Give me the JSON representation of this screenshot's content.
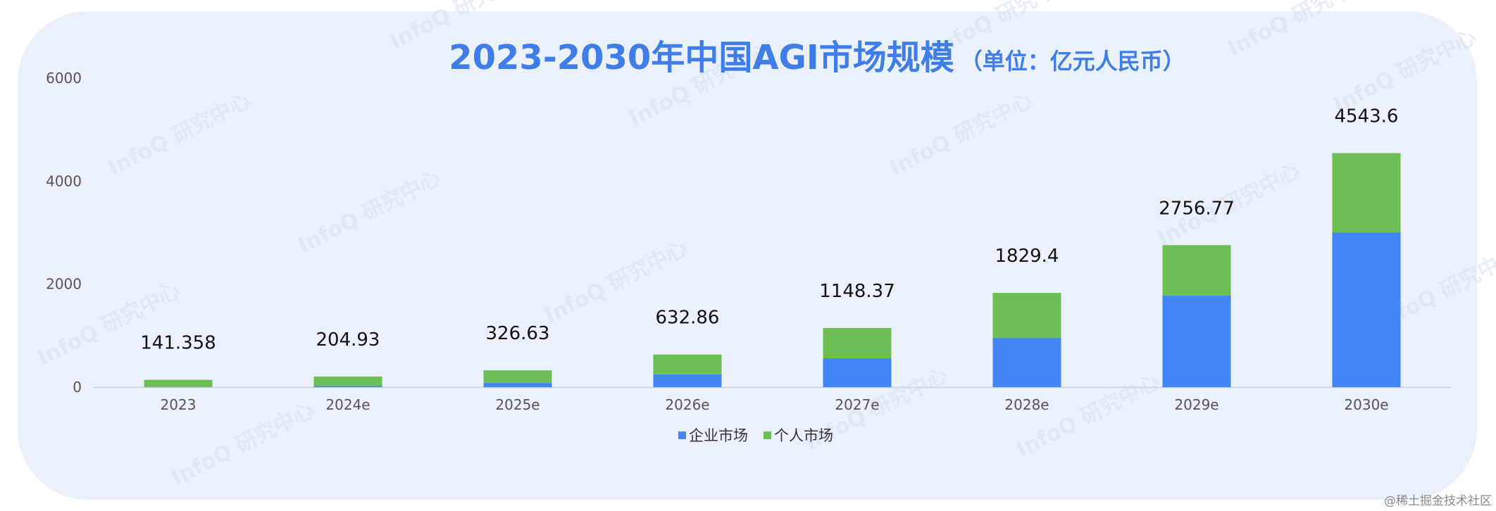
{
  "chart_data": {
    "type": "bar",
    "stacked": true,
    "title": "2023-2030年中国AGI市场规模",
    "subtitle": "（单位：亿元人民币）",
    "categories": [
      "2023",
      "2024e",
      "2025e",
      "2026e",
      "2027e",
      "2028e",
      "2029e",
      "2030e"
    ],
    "series": [
      {
        "name": "企业市场",
        "color": "#4285f4",
        "values": [
          4,
          20,
          80,
          250,
          560,
          950,
          1780,
          3000
        ]
      },
      {
        "name": "个人市场",
        "color": "#6dbf55",
        "values": [
          137.358,
          184.93,
          246.63,
          382.86,
          588.37,
          879.4,
          976.77,
          1543.6
        ]
      }
    ],
    "totals": [
      "141.358",
      "204.93",
      "326.63",
      "632.86",
      "1148.37",
      "1829.4",
      "2756.77",
      "4543.6"
    ],
    "yticks": [
      "0",
      "2000",
      "4000",
      "6000"
    ],
    "ylim": [
      0,
      6000
    ],
    "grid": false,
    "legend_position": "bottom"
  },
  "watermark_text": "InfoQ 研究中心",
  "credit": "@稀土掘金技术社区"
}
